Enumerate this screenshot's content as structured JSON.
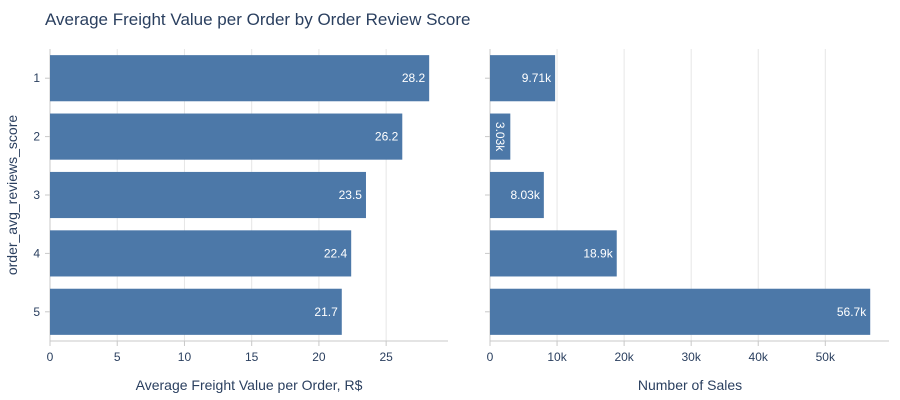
{
  "chart_data": {
    "type": "bar",
    "orientation": "horizontal",
    "title": "Average Freight Value per Order by Order Review Score",
    "ylabel": "order_avg_reviews_score",
    "categories": [
      "1",
      "2",
      "3",
      "4",
      "5"
    ],
    "bar_color": "#4c78a8",
    "grid": true,
    "panels": [
      {
        "xlabel": "Average Freight Value per Order, R$",
        "xlim": [
          0,
          29.6
        ],
        "xticks": [
          0,
          5,
          10,
          15,
          20,
          25
        ],
        "xtick_labels": [
          "0",
          "5",
          "10",
          "15",
          "20",
          "25"
        ],
        "values": [
          28.2,
          26.2,
          23.5,
          22.4,
          21.7
        ],
        "value_labels": [
          "28.2",
          "26.2",
          "23.5",
          "22.4",
          "21.7"
        ]
      },
      {
        "xlabel": "Number of Sales",
        "xlim": [
          0,
          59500
        ],
        "xticks": [
          0,
          10000,
          20000,
          30000,
          40000,
          50000
        ],
        "xtick_labels": [
          "0",
          "10k",
          "20k",
          "30k",
          "40k",
          "50k"
        ],
        "values": [
          9710,
          3030,
          8030,
          18900,
          56700
        ],
        "value_labels": [
          "9.71k",
          "3.03k",
          "8.03k",
          "18.9k",
          "56.7k"
        ]
      }
    ]
  }
}
